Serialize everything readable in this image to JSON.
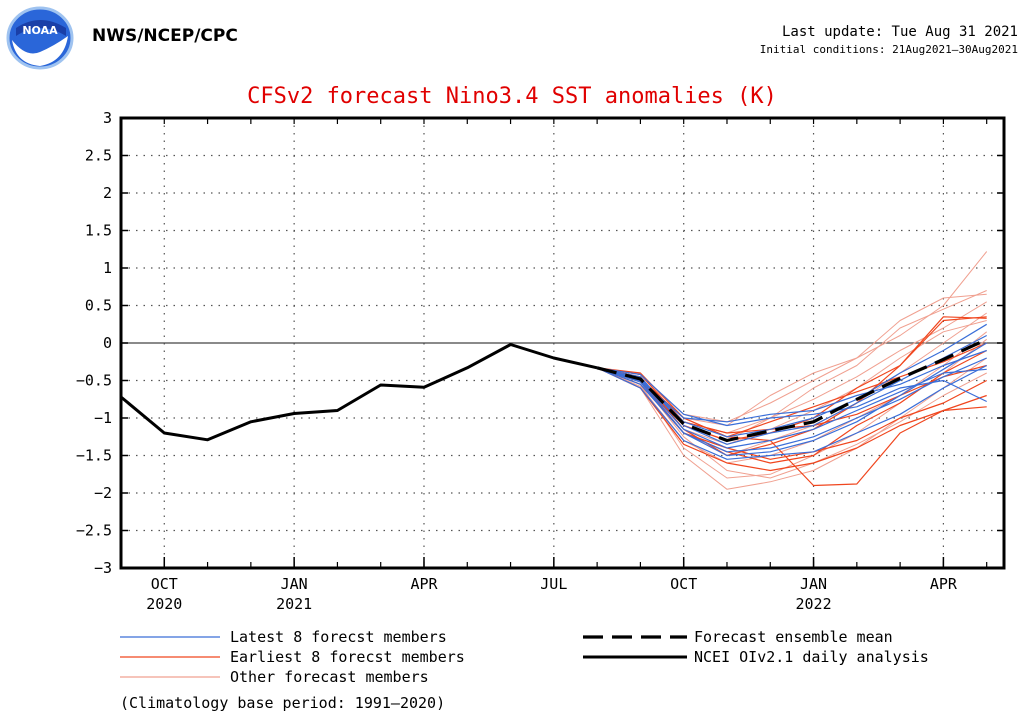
{
  "header": {
    "organization": "NWS/NCEP/CPC",
    "last_update": "Last update: Tue Aug 31 2021",
    "initial_conditions": "Initial conditions: 21Aug2021–30Aug2021",
    "logo_text": "NOAA"
  },
  "chart_data": {
    "type": "line",
    "title": "CFSv2 forecast Nino3.4 SST anomalies (K)",
    "title_color": "#e00000",
    "xlabel": "",
    "ylabel": "",
    "x_months": [
      "Sep 2020",
      "Oct 2020",
      "Nov 2020",
      "Dec 2020",
      "Jan 2021",
      "Feb 2021",
      "Mar 2021",
      "Apr 2021",
      "May 2021",
      "Jun 2021",
      "Jul 2021",
      "Aug 2021",
      "Sep 2021",
      "Oct 2021",
      "Nov 2021",
      "Dec 2021",
      "Jan 2022",
      "Feb 2022",
      "Mar 2022",
      "Apr 2022",
      "May 2022"
    ],
    "xlim": [
      0,
      20.4
    ],
    "ylim": [
      -3,
      3
    ],
    "yticks": [
      3,
      2.5,
      2,
      1.5,
      1,
      0.5,
      0,
      -0.5,
      -1,
      -1.5,
      -2,
      -2.5,
      -3
    ],
    "ytick_labels": [
      "3",
      "2.5",
      "2",
      "1.5",
      "1",
      "0.5",
      "0",
      "−0.5",
      "−1",
      "−1.5",
      "−2",
      "−2.5",
      "−3"
    ],
    "xtick_labels": [
      {
        "x": 1,
        "month": "OCT",
        "year": "2020"
      },
      {
        "x": 4,
        "month": "JAN",
        "year": "2021"
      },
      {
        "x": 7,
        "month": "APR",
        "year": ""
      },
      {
        "x": 10,
        "month": "JUL",
        "year": ""
      },
      {
        "x": 13,
        "month": "OCT",
        "year": ""
      },
      {
        "x": 16,
        "month": "JAN",
        "year": "2022"
      },
      {
        "x": 19,
        "month": "APR",
        "year": ""
      }
    ],
    "grid": true,
    "zero_line": true,
    "observed": {
      "name": "NCEI OIv2.1 daily analysis",
      "color": "#000000",
      "x": [
        0,
        1,
        2,
        3,
        4,
        5,
        6,
        7,
        8,
        9,
        10,
        11
      ],
      "y": [
        -0.72,
        -1.2,
        -1.29,
        -1.05,
        -0.94,
        -0.9,
        -0.56,
        -0.59,
        -0.33,
        -0.02,
        -0.2,
        -0.33
      ]
    },
    "ensemble_mean": {
      "name": "Forecast ensemble mean",
      "color": "#000000",
      "x": [
        11,
        12,
        13,
        14,
        15,
        16,
        17,
        18,
        19,
        20
      ],
      "y": [
        -0.33,
        -0.48,
        -1.08,
        -1.3,
        -1.17,
        -1.05,
        -0.75,
        -0.47,
        -0.22,
        0.05
      ]
    },
    "members_x": [
      11,
      12,
      13,
      14,
      15,
      16,
      17,
      18,
      19,
      20
    ],
    "latest_members": {
      "name": "Latest 8 forecst members",
      "color": "#3a6ed8",
      "series": [
        [
          -0.33,
          -0.45,
          -1.1,
          -1.35,
          -1.2,
          -1.1,
          -0.8,
          -0.5,
          -0.2,
          0.1
        ],
        [
          -0.33,
          -0.5,
          -1.0,
          -1.05,
          -0.95,
          -0.9,
          -0.7,
          -0.55,
          -0.3,
          -0.1
        ],
        [
          -0.33,
          -0.55,
          -1.2,
          -1.45,
          -1.4,
          -1.25,
          -1.0,
          -0.75,
          -0.45,
          -0.2
        ],
        [
          -0.33,
          -0.48,
          -1.05,
          -1.25,
          -1.15,
          -1.0,
          -0.75,
          -0.4,
          -0.1,
          0.25
        ],
        [
          -0.33,
          -0.6,
          -1.3,
          -1.55,
          -1.5,
          -1.45,
          -1.2,
          -0.95,
          -0.6,
          -0.3
        ],
        [
          -0.33,
          -0.42,
          -0.95,
          -1.1,
          -1.0,
          -0.95,
          -0.85,
          -0.6,
          -0.5,
          -0.78
        ],
        [
          -0.33,
          -0.5,
          -1.15,
          -1.4,
          -1.3,
          -1.15,
          -0.9,
          -0.65,
          -0.4,
          -0.35
        ],
        [
          -0.33,
          -0.52,
          -1.2,
          -1.5,
          -1.45,
          -1.3,
          -1.05,
          -0.7,
          -0.35,
          0.0
        ]
      ]
    },
    "earliest_members": {
      "name": "Earliest 8 forecst members",
      "color": "#f0461e",
      "series": [
        [
          -0.33,
          -0.4,
          -1.0,
          -1.25,
          -1.3,
          -1.9,
          -1.88,
          -1.2,
          -0.9,
          -0.7
        ],
        [
          -0.33,
          -0.45,
          -1.15,
          -1.5,
          -1.35,
          -1.15,
          -0.8,
          -0.3,
          0.35,
          0.33
        ],
        [
          -0.33,
          -0.55,
          -1.2,
          -1.4,
          -1.55,
          -1.45,
          -1.3,
          -1.0,
          -0.8,
          -0.5
        ],
        [
          -0.33,
          -0.5,
          -1.1,
          -1.3,
          -1.2,
          -1.0,
          -0.6,
          -0.3,
          0.3,
          0.35
        ],
        [
          -0.33,
          -0.42,
          -1.05,
          -1.2,
          -1.15,
          -1.1,
          -0.95,
          -0.7,
          -0.45,
          -0.3
        ],
        [
          -0.33,
          -0.6,
          -1.35,
          -1.6,
          -1.7,
          -1.6,
          -1.4,
          -1.1,
          -0.9,
          -0.85
        ],
        [
          -0.33,
          -0.48,
          -1.0,
          -1.25,
          -1.05,
          -0.85,
          -0.65,
          -0.45,
          -0.25,
          0.0
        ],
        [
          -0.33,
          -0.5,
          -1.2,
          -1.45,
          -1.6,
          -1.5,
          -1.1,
          -0.8,
          -0.4,
          -0.1
        ]
      ]
    },
    "other_members": {
      "name": "Other forecast members",
      "color": "#f0a090",
      "series": [
        [
          -0.33,
          -0.5,
          -1.0,
          -1.1,
          -0.7,
          -0.4,
          -0.2,
          0.1,
          0.5,
          1.22
        ],
        [
          -0.33,
          -0.45,
          -1.1,
          -1.3,
          -1.0,
          -0.6,
          -0.3,
          0.2,
          0.45,
          0.7
        ],
        [
          -0.33,
          -0.55,
          -1.4,
          -1.8,
          -1.75,
          -1.5,
          -1.2,
          -0.8,
          -0.4,
          0.05
        ],
        [
          -0.33,
          -0.5,
          -1.2,
          -1.5,
          -1.3,
          -1.1,
          -0.8,
          -0.4,
          0.0,
          0.4
        ],
        [
          -0.33,
          -0.6,
          -1.5,
          -1.95,
          -1.85,
          -1.7,
          -1.4,
          -1.0,
          -0.6,
          -0.2
        ],
        [
          -0.33,
          -0.42,
          -0.95,
          -1.05,
          -0.8,
          -0.5,
          -0.2,
          0.3,
          0.6,
          0.65
        ],
        [
          -0.33,
          -0.58,
          -1.3,
          -1.6,
          -1.5,
          -1.3,
          -1.0,
          -0.7,
          -0.3,
          0.15
        ],
        [
          -0.33,
          -0.48,
          -1.05,
          -1.2,
          -1.0,
          -0.75,
          -0.45,
          -0.1,
          0.2,
          0.55
        ],
        [
          -0.33,
          -0.52,
          -1.25,
          -1.7,
          -1.8,
          -1.6,
          -1.35,
          -1.05,
          -0.7,
          -0.4
        ],
        [
          -0.33,
          -0.46,
          -1.15,
          -1.35,
          -1.15,
          -0.9,
          -0.6,
          -0.2,
          0.15,
          0.3
        ]
      ]
    }
  },
  "legend": {
    "footnote": "(Climatology base period: 1991–2020)"
  }
}
